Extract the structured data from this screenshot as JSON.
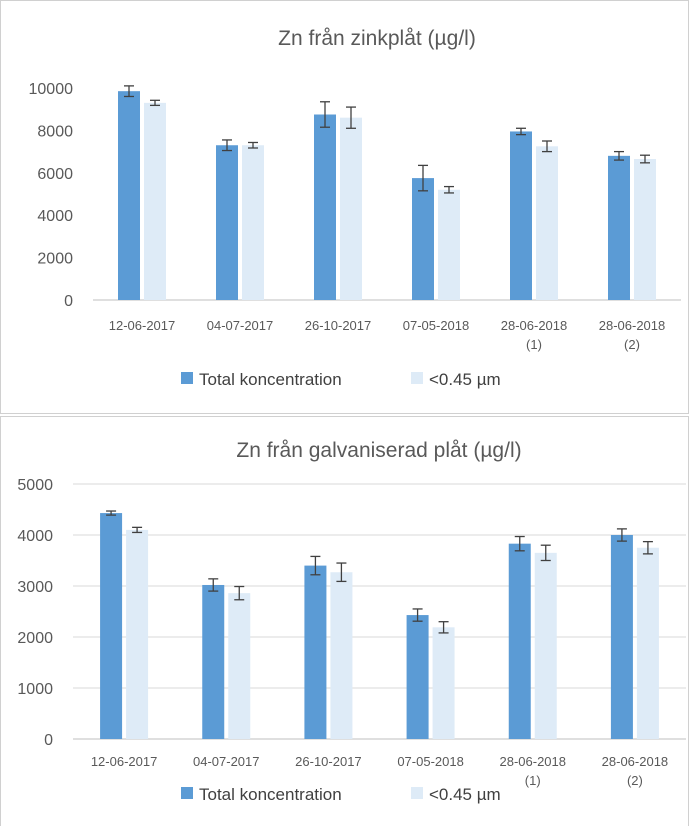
{
  "colors": {
    "total": "#5b9bd5",
    "filtered": "#deebf7",
    "error": "#404040",
    "axis": "#bfbfbf",
    "text": "#595959"
  },
  "chart_data": [
    {
      "type": "bar",
      "title": "Zn från zinkplåt (µg/l)",
      "categories": [
        [
          "12-06-2017"
        ],
        [
          "04-07-2017"
        ],
        [
          "26-10-2017"
        ],
        [
          "07-05-2018"
        ],
        [
          "28-06-2018",
          "(1)"
        ],
        [
          "28-06-2018",
          "(2)"
        ]
      ],
      "ylim": [
        0,
        10000
      ],
      "yticks": [
        0,
        2000,
        4000,
        6000,
        8000,
        10000
      ],
      "grid": false,
      "legend": "bottom",
      "series": [
        {
          "name": "Total koncentration",
          "values": [
            9850,
            7300,
            8750,
            5750,
            7950,
            6800
          ],
          "errors": [
            250,
            250,
            600,
            600,
            150,
            200
          ]
        },
        {
          "name": "<0.45 µm",
          "values": [
            9300,
            7300,
            8600,
            5200,
            7250,
            6650
          ],
          "errors": [
            120,
            130,
            500,
            150,
            250,
            180
          ]
        }
      ]
    },
    {
      "type": "bar",
      "title": "Zn från galvaniserad plåt (µg/l)",
      "categories": [
        [
          "12-06-2017"
        ],
        [
          "04-07-2017"
        ],
        [
          "26-10-2017"
        ],
        [
          "07-05-2018"
        ],
        [
          "28-06-2018",
          "(1)"
        ],
        [
          "28-06-2018",
          "(2)"
        ]
      ],
      "ylim": [
        0,
        5000
      ],
      "yticks": [
        0,
        1000,
        2000,
        3000,
        4000,
        5000
      ],
      "grid": true,
      "legend": "bottom",
      "series": [
        {
          "name": "Total koncentration",
          "values": [
            4430,
            3020,
            3400,
            2430,
            3830,
            4000
          ],
          "errors": [
            40,
            120,
            180,
            120,
            140,
            120
          ]
        },
        {
          "name": "<0.45 µm",
          "values": [
            4100,
            2860,
            3270,
            2190,
            3650,
            3750
          ],
          "errors": [
            50,
            130,
            180,
            110,
            150,
            120
          ]
        }
      ]
    }
  ]
}
